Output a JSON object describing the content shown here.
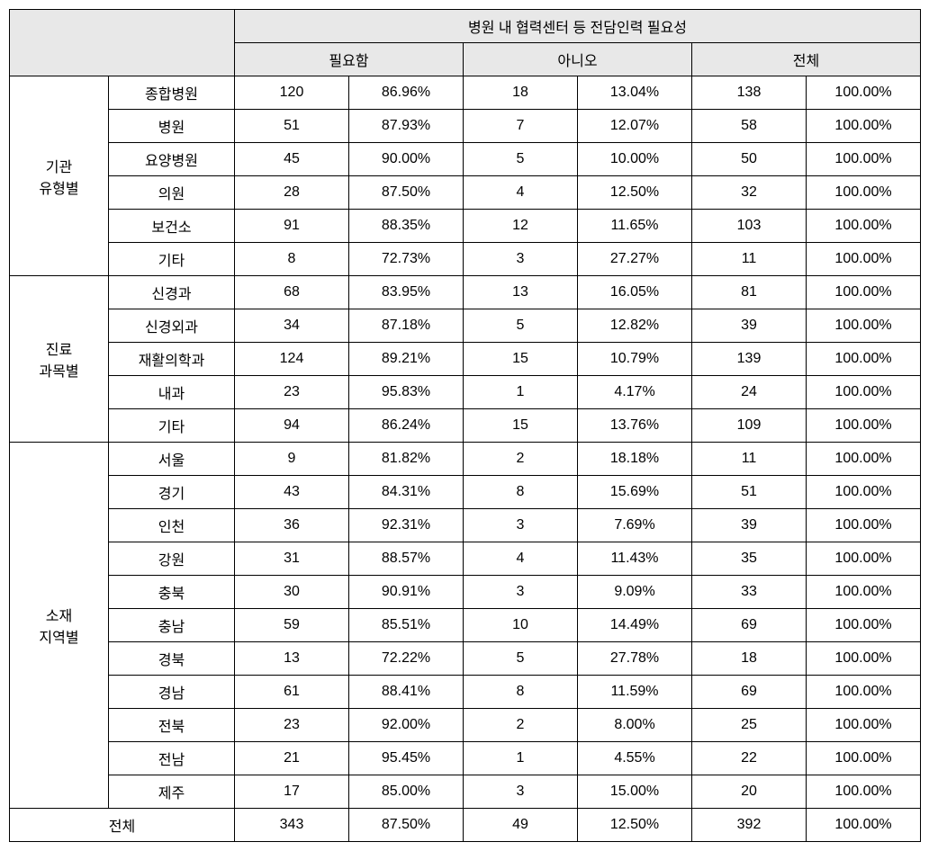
{
  "table": {
    "main_header": "병원 내 협력센터 등 전담인력 필요성",
    "sub_headers": [
      "필요함",
      "아니오",
      "전체"
    ],
    "groups": [
      {
        "label": "기관\n유형별",
        "rows": [
          {
            "label": "종합병원",
            "yes_n": "120",
            "yes_p": "86.96%",
            "no_n": "18",
            "no_p": "13.04%",
            "total_n": "138",
            "total_p": "100.00%"
          },
          {
            "label": "병원",
            "yes_n": "51",
            "yes_p": "87.93%",
            "no_n": "7",
            "no_p": "12.07%",
            "total_n": "58",
            "total_p": "100.00%"
          },
          {
            "label": "요양병원",
            "yes_n": "45",
            "yes_p": "90.00%",
            "no_n": "5",
            "no_p": "10.00%",
            "total_n": "50",
            "total_p": "100.00%"
          },
          {
            "label": "의원",
            "yes_n": "28",
            "yes_p": "87.50%",
            "no_n": "4",
            "no_p": "12.50%",
            "total_n": "32",
            "total_p": "100.00%"
          },
          {
            "label": "보건소",
            "yes_n": "91",
            "yes_p": "88.35%",
            "no_n": "12",
            "no_p": "11.65%",
            "total_n": "103",
            "total_p": "100.00%"
          },
          {
            "label": "기타",
            "yes_n": "8",
            "yes_p": "72.73%",
            "no_n": "3",
            "no_p": "27.27%",
            "total_n": "11",
            "total_p": "100.00%"
          }
        ]
      },
      {
        "label": "진료\n과목별",
        "rows": [
          {
            "label": "신경과",
            "yes_n": "68",
            "yes_p": "83.95%",
            "no_n": "13",
            "no_p": "16.05%",
            "total_n": "81",
            "total_p": "100.00%"
          },
          {
            "label": "신경외과",
            "yes_n": "34",
            "yes_p": "87.18%",
            "no_n": "5",
            "no_p": "12.82%",
            "total_n": "39",
            "total_p": "100.00%"
          },
          {
            "label": "재활의학과",
            "yes_n": "124",
            "yes_p": "89.21%",
            "no_n": "15",
            "no_p": "10.79%",
            "total_n": "139",
            "total_p": "100.00%"
          },
          {
            "label": "내과",
            "yes_n": "23",
            "yes_p": "95.83%",
            "no_n": "1",
            "no_p": "4.17%",
            "total_n": "24",
            "total_p": "100.00%"
          },
          {
            "label": "기타",
            "yes_n": "94",
            "yes_p": "86.24%",
            "no_n": "15",
            "no_p": "13.76%",
            "total_n": "109",
            "total_p": "100.00%"
          }
        ]
      },
      {
        "label": "소재\n지역별",
        "rows": [
          {
            "label": "서울",
            "yes_n": "9",
            "yes_p": "81.82%",
            "no_n": "2",
            "no_p": "18.18%",
            "total_n": "11",
            "total_p": "100.00%"
          },
          {
            "label": "경기",
            "yes_n": "43",
            "yes_p": "84.31%",
            "no_n": "8",
            "no_p": "15.69%",
            "total_n": "51",
            "total_p": "100.00%"
          },
          {
            "label": "인천",
            "yes_n": "36",
            "yes_p": "92.31%",
            "no_n": "3",
            "no_p": "7.69%",
            "total_n": "39",
            "total_p": "100.00%"
          },
          {
            "label": "강원",
            "yes_n": "31",
            "yes_p": "88.57%",
            "no_n": "4",
            "no_p": "11.43%",
            "total_n": "35",
            "total_p": "100.00%"
          },
          {
            "label": "충북",
            "yes_n": "30",
            "yes_p": "90.91%",
            "no_n": "3",
            "no_p": "9.09%",
            "total_n": "33",
            "total_p": "100.00%"
          },
          {
            "label": "충남",
            "yes_n": "59",
            "yes_p": "85.51%",
            "no_n": "10",
            "no_p": "14.49%",
            "total_n": "69",
            "total_p": "100.00%"
          },
          {
            "label": "경북",
            "yes_n": "13",
            "yes_p": "72.22%",
            "no_n": "5",
            "no_p": "27.78%",
            "total_n": "18",
            "total_p": "100.00%"
          },
          {
            "label": "경남",
            "yes_n": "61",
            "yes_p": "88.41%",
            "no_n": "8",
            "no_p": "11.59%",
            "total_n": "69",
            "total_p": "100.00%"
          },
          {
            "label": "전북",
            "yes_n": "23",
            "yes_p": "92.00%",
            "no_n": "2",
            "no_p": "8.00%",
            "total_n": "25",
            "total_p": "100.00%"
          },
          {
            "label": "전남",
            "yes_n": "21",
            "yes_p": "95.45%",
            "no_n": "1",
            "no_p": "4.55%",
            "total_n": "22",
            "total_p": "100.00%"
          },
          {
            "label": "제주",
            "yes_n": "17",
            "yes_p": "85.00%",
            "no_n": "3",
            "no_p": "15.00%",
            "total_n": "20",
            "total_p": "100.00%"
          }
        ]
      }
    ],
    "total_row": {
      "label": "전체",
      "yes_n": "343",
      "yes_p": "87.50%",
      "no_n": "49",
      "no_p": "12.50%",
      "total_n": "392",
      "total_p": "100.00%"
    },
    "styling": {
      "header_bg": "#e8e8e8",
      "border_color": "#000000",
      "font_size": 16,
      "col_widths": {
        "group": 110,
        "row_label": 140,
        "data": 127
      }
    }
  }
}
